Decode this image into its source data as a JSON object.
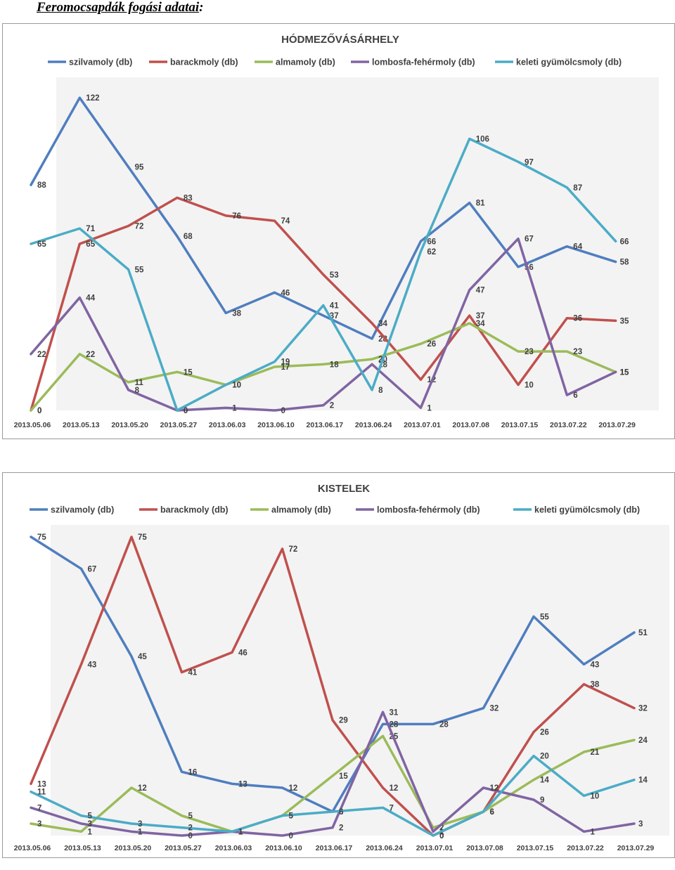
{
  "page": {
    "heading": "Feromocsapdák fogási adatai",
    "heading_suffix": ":"
  },
  "colors": {
    "szilvamoly": "#4f7ebf",
    "barackmoly": "#c0504d",
    "almamoly": "#9bbb59",
    "lombosfa": "#8064a2",
    "keleti": "#4bacc6",
    "plot_bg": "#f3f3f3"
  },
  "chart_data": [
    {
      "type": "line",
      "title": "HÓDMEZŐVÁSÁRHELY",
      "legend_position": "top",
      "grid": false,
      "categories": [
        "2013.05.06",
        "2013.05.13",
        "2013.05.20",
        "2013.05.27",
        "2013.06.03",
        "2013.06.10",
        "2013.06.17",
        "2013.06.24",
        "2013.07.01",
        "2013.07.08",
        "2013.07.15",
        "2013.07.22",
        "2013.07.29"
      ],
      "ylim": [
        0,
        130
      ],
      "series": [
        {
          "name": "szilvamoly (db)",
          "color": "#4f7ebf",
          "values": [
            88,
            122,
            95,
            68,
            38,
            46,
            37,
            28,
            66,
            81,
            56,
            64,
            58
          ]
        },
        {
          "name": "barackmoly (db)",
          "color": "#c0504d",
          "values": [
            0,
            65,
            72,
            83,
            76,
            74,
            53,
            34,
            12,
            37,
            10,
            36,
            35
          ]
        },
        {
          "name": "almamoly (db)",
          "color": "#9bbb59",
          "values": [
            0,
            22,
            11,
            15,
            10,
            17,
            18,
            20,
            26,
            34,
            23,
            23,
            15
          ]
        },
        {
          "name": "lombosfa-fehérmoly (db)",
          "color": "#8064a2",
          "values": [
            22,
            44,
            8,
            0,
            1,
            0,
            2,
            18,
            1,
            47,
            67,
            6,
            15
          ]
        },
        {
          "name": "keleti gyümölcsmoly (db)",
          "color": "#4bacc6",
          "values": [
            65,
            71,
            55,
            0,
            10,
            19,
            41,
            8,
            62,
            106,
            97,
            87,
            66
          ]
        }
      ]
    },
    {
      "type": "line",
      "title": "KISTELEK",
      "legend_position": "top",
      "grid": false,
      "categories": [
        "2013.05.06",
        "2013.05.13",
        "2013.05.20",
        "2013.05.27",
        "2013.06.03",
        "2013.06.10",
        "2013.06.17",
        "2013.06.24",
        "2013.07.01",
        "2013.07.08",
        "2013.07.15",
        "2013.07.22",
        "2013.07.29"
      ],
      "ylim": [
        0,
        78
      ],
      "series": [
        {
          "name": "szilvamoly (db)",
          "color": "#4f7ebf",
          "values": [
            75,
            67,
            45,
            16,
            13,
            12,
            6,
            28,
            28,
            32,
            55,
            43,
            51
          ]
        },
        {
          "name": "barackmoly (db)",
          "color": "#c0504d",
          "values": [
            13,
            43,
            75,
            41,
            46,
            72,
            29,
            12,
            0,
            6,
            26,
            38,
            32
          ]
        },
        {
          "name": "almamoly (db)",
          "color": "#9bbb59",
          "values": [
            3,
            1,
            12,
            5,
            1,
            5,
            15,
            25,
            2,
            6,
            14,
            21,
            24
          ]
        },
        {
          "name": "lombosfa-fehérmoly (db)",
          "color": "#8064a2",
          "values": [
            7,
            3,
            1,
            0,
            1,
            0,
            2,
            31,
            1,
            12,
            9,
            1,
            3
          ]
        },
        {
          "name": "keleti gyümölcsmoly (db)",
          "color": "#4bacc6",
          "values": [
            11,
            5,
            3,
            2,
            1,
            5,
            6,
            7,
            0,
            6,
            20,
            10,
            14
          ]
        }
      ]
    }
  ]
}
